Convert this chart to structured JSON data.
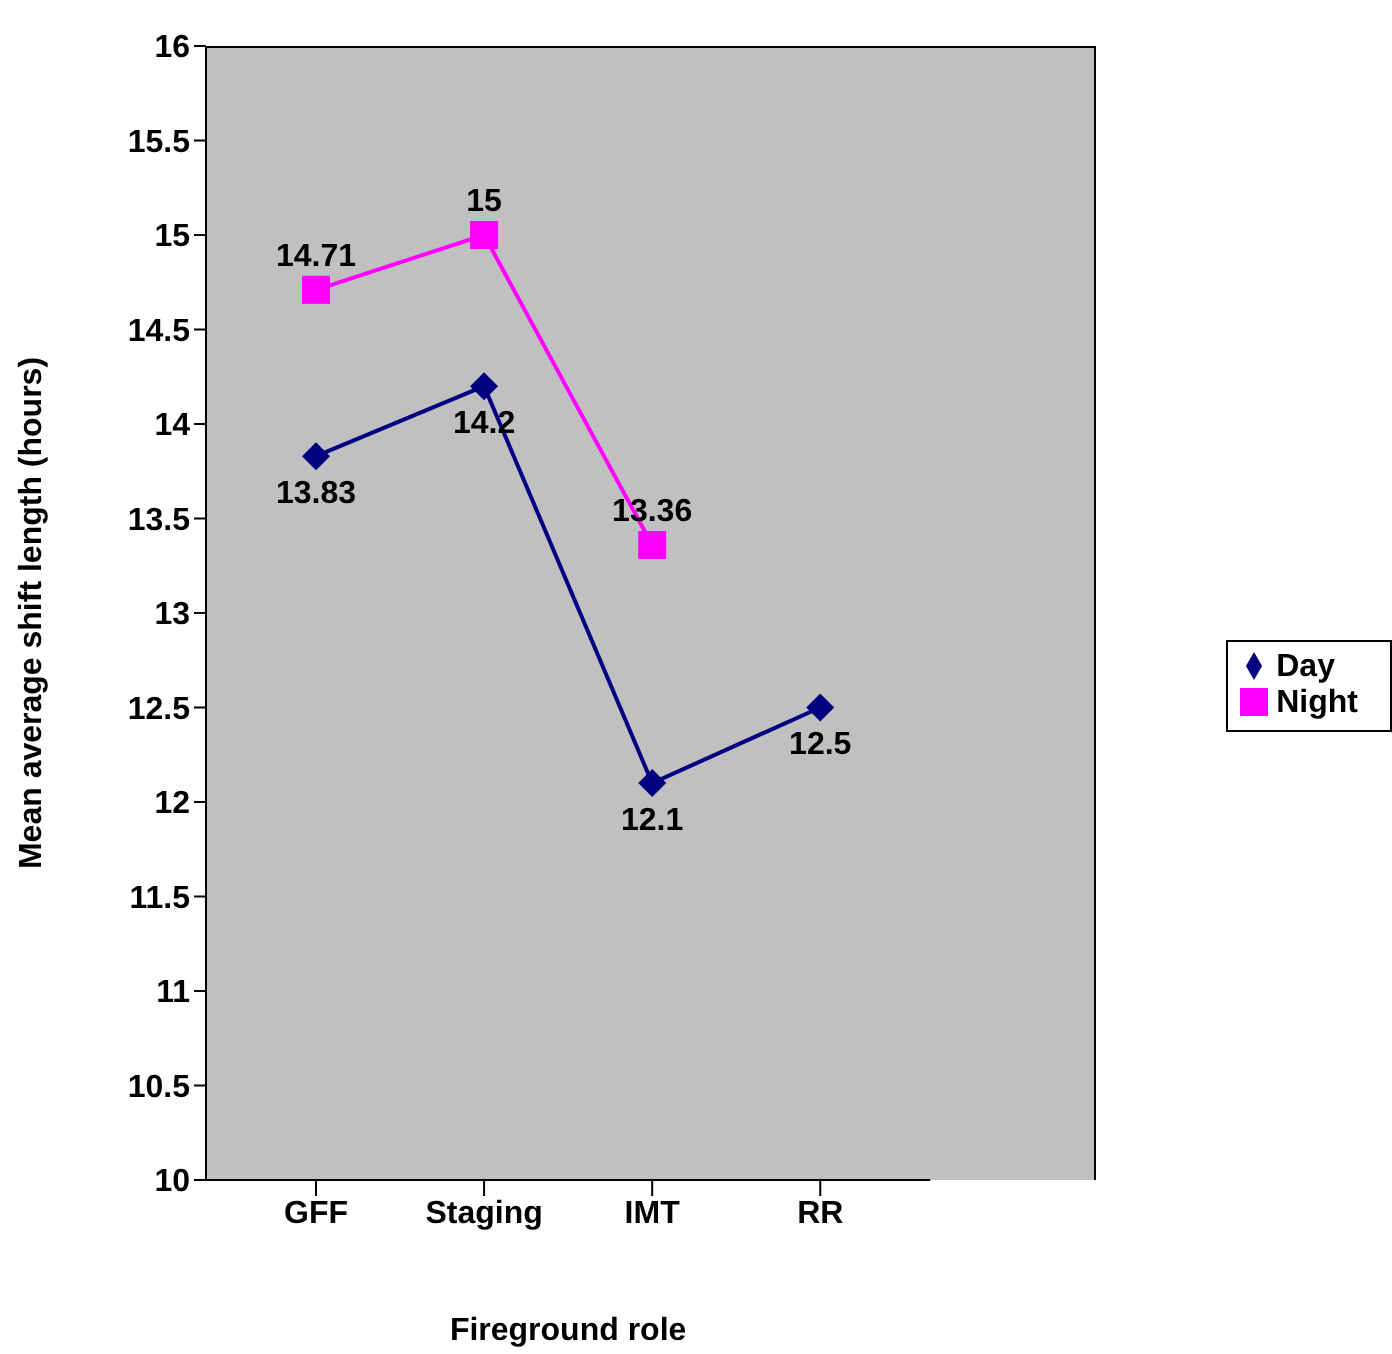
{
  "chart_data": {
    "type": "line",
    "xlabel": "Fireground role",
    "ylabel": "Mean average shift length (hours)",
    "categories": [
      "GFF",
      "Staging",
      "IMT",
      "RR"
    ],
    "series": [
      {
        "name": "Day",
        "color": "#000080",
        "marker": "diamond",
        "values": [
          13.83,
          14.2,
          12.1,
          12.5
        ]
      },
      {
        "name": "Night",
        "color": "#ff00ff",
        "marker": "square",
        "values": [
          14.71,
          15,
          13.36,
          null
        ]
      }
    ],
    "ylim": [
      10,
      16
    ],
    "yticks": [
      10,
      10.5,
      11,
      11.5,
      12,
      12.5,
      13,
      13.5,
      14,
      14.5,
      15,
      15.5,
      16
    ],
    "grid": false,
    "legend": "right",
    "data_labels": true
  }
}
